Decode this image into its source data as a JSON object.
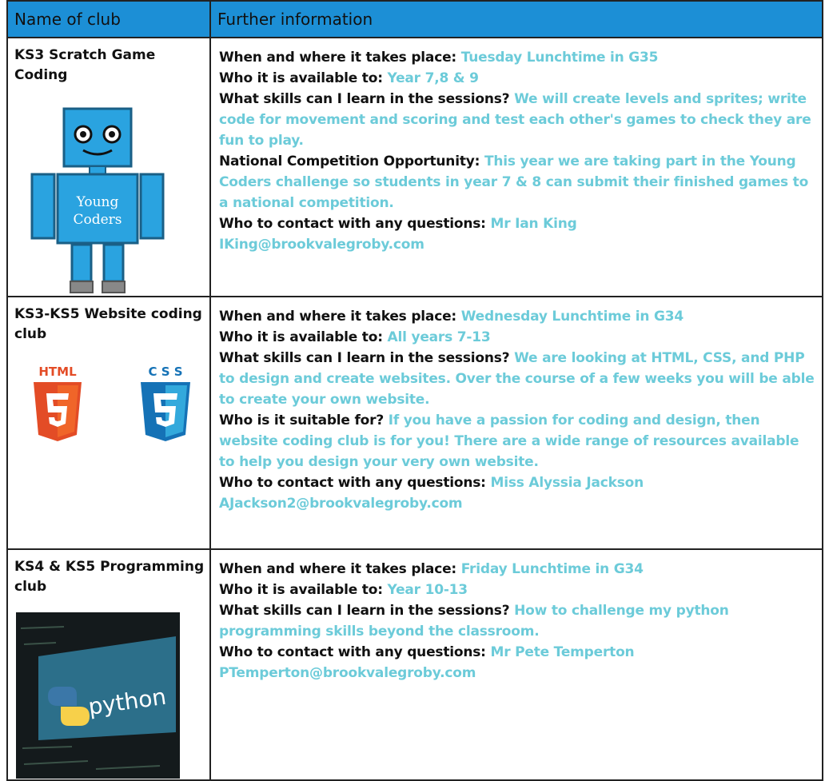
{
  "table": {
    "headers": [
      "Name of club",
      "Further information"
    ],
    "rows": [
      {
        "club": "KS3 Scratch Game Coding",
        "image_text": [
          "Young",
          "Coders"
        ],
        "info": [
          {
            "label": "When and where it takes place:",
            "value": "Tuesday Lunchtime in G35"
          },
          {
            "label": "Who it is available to:",
            "value": "Year 7,8 & 9"
          },
          {
            "label": "What skills can I learn in the sessions?",
            "value": "We will create levels and sprites; write code for movement and scoring and test each other's games to check they are fun to play."
          },
          {
            "label": "National Competition Opportunity:",
            "value": "This year we are taking part in the Young Coders challenge so students in year 7 & 8 can submit their finished games to a national competition."
          },
          {
            "label": "Who to contact with any questions:",
            "value": "Mr Ian King"
          }
        ],
        "email": "IKing@brookvalegroby.com"
      },
      {
        "club": "KS3-KS5 Website coding club",
        "image_text": [
          "HTML",
          "C S S"
        ],
        "info": [
          {
            "label": "When and where it takes place:",
            "value": "Wednesday Lunchtime in G34"
          },
          {
            "label": "Who it is available to:",
            "value": "All years 7-13"
          },
          {
            "label": "What skills can I learn in the sessions?",
            "value": "We are looking at HTML, CSS, and PHP to design and create websites. Over the course of a few weeks you will be able to create your own website."
          },
          {
            "label": "Who is it suitable for?",
            "value": "If you have a passion for coding and design, then website coding club is for you! There are a wide range of resources available to help you design your very own website."
          },
          {
            "label": "Who to contact with any questions:",
            "value": "Miss Alyssia Jackson"
          }
        ],
        "email": "AJackson2@brookvalegroby.com"
      },
      {
        "club": "KS4 & KS5 Programming club",
        "image_text": [
          "python"
        ],
        "info": [
          {
            "label": "When and where it takes place:",
            "value": "Friday Lunchtime in G34"
          },
          {
            "label": "Who it is available to:",
            "value": "Year 10-13"
          },
          {
            "label": "What skills can I learn in the sessions?",
            "value": "How to challenge my python programming skills beyond the classroom."
          },
          {
            "label": "Who to contact with any questions:",
            "value": "Mr Pete Temperton"
          }
        ],
        "email": "PTemperton@brookvalegroby.com"
      }
    ]
  }
}
